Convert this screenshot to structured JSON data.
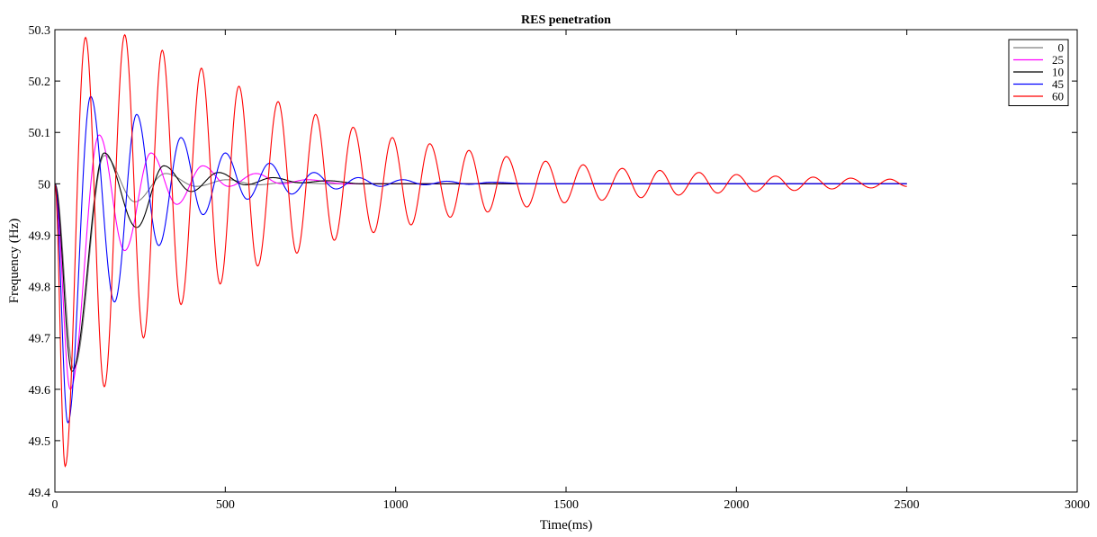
{
  "chart_data": {
    "type": "line",
    "title": "RES penetration",
    "xlabel": "Time(ms)",
    "ylabel": "Frequency (Hz)",
    "xlim": [
      0,
      3000
    ],
    "ylim": [
      49.4,
      50.3
    ],
    "xticks": [
      0,
      500,
      1000,
      1500,
      2000,
      2500,
      3000
    ],
    "yticks": [
      49.4,
      49.5,
      49.6,
      49.7,
      49.8,
      49.9,
      50,
      50.1,
      50.2,
      50.3
    ],
    "xtick_labels": [
      "0",
      "500",
      "1000",
      "1500",
      "2000",
      "2500",
      "3000"
    ],
    "ytick_labels": [
      "49.4",
      "49.5",
      "49.6",
      "49.7",
      "49.8",
      "49.9",
      "50",
      "50.1",
      "50.2",
      "50.3"
    ],
    "grid": false,
    "legend_position": "top-right",
    "series": [
      {
        "name": "0",
        "color": "#808080",
        "points": [
          [
            0,
            50.0
          ],
          [
            55,
            49.64
          ],
          [
            145,
            50.055
          ],
          [
            235,
            49.965
          ],
          [
            325,
            50.02
          ],
          [
            415,
            49.995
          ],
          [
            505,
            50.008
          ],
          [
            595,
            49.998
          ],
          [
            685,
            50.003
          ],
          [
            800,
            50.0
          ],
          [
            2500,
            50.0
          ]
        ]
      },
      {
        "name": "25",
        "color": "#ff00ff",
        "points": [
          [
            0,
            50.0
          ],
          [
            45,
            49.6
          ],
          [
            130,
            50.095
          ],
          [
            205,
            49.87
          ],
          [
            282,
            50.06
          ],
          [
            358,
            49.96
          ],
          [
            434,
            50.035
          ],
          [
            510,
            49.995
          ],
          [
            590,
            50.02
          ],
          [
            665,
            50.0
          ],
          [
            740,
            50.008
          ],
          [
            850,
            50.0
          ],
          [
            2500,
            50.0
          ]
        ]
      },
      {
        "name": "10",
        "color": "#000000",
        "points": [
          [
            0,
            50.0
          ],
          [
            50,
            49.635
          ],
          [
            145,
            50.06
          ],
          [
            240,
            49.915
          ],
          [
            320,
            50.035
          ],
          [
            400,
            49.985
          ],
          [
            480,
            50.022
          ],
          [
            560,
            49.998
          ],
          [
            640,
            50.012
          ],
          [
            720,
            50.002
          ],
          [
            800,
            50.006
          ],
          [
            900,
            50.0
          ],
          [
            2500,
            50.0
          ]
        ]
      },
      {
        "name": "45",
        "color": "#0000ff",
        "points": [
          [
            0,
            50.0
          ],
          [
            38,
            49.535
          ],
          [
            105,
            50.17
          ],
          [
            175,
            49.77
          ],
          [
            240,
            50.135
          ],
          [
            305,
            49.88
          ],
          [
            370,
            50.09
          ],
          [
            435,
            49.94
          ],
          [
            500,
            50.06
          ],
          [
            565,
            49.97
          ],
          [
            630,
            50.04
          ],
          [
            695,
            49.98
          ],
          [
            760,
            50.022
          ],
          [
            825,
            49.99
          ],
          [
            890,
            50.012
          ],
          [
            955,
            49.995
          ],
          [
            1020,
            50.008
          ],
          [
            1085,
            49.998
          ],
          [
            1150,
            50.005
          ],
          [
            1215,
            49.999
          ],
          [
            1280,
            50.003
          ],
          [
            1400,
            50.0
          ],
          [
            2500,
            50.0
          ]
        ]
      },
      {
        "name": "60",
        "color": "#ff0000",
        "points": [
          [
            0,
            50.0
          ],
          [
            30,
            49.45
          ],
          [
            90,
            50.285
          ],
          [
            145,
            49.605
          ],
          [
            205,
            50.29
          ],
          [
            260,
            49.7
          ],
          [
            315,
            50.26
          ],
          [
            370,
            49.765
          ],
          [
            430,
            50.225
          ],
          [
            485,
            49.805
          ],
          [
            540,
            50.19
          ],
          [
            595,
            49.84
          ],
          [
            655,
            50.16
          ],
          [
            710,
            49.865
          ],
          [
            765,
            50.135
          ],
          [
            820,
            49.89
          ],
          [
            875,
            50.11
          ],
          [
            935,
            49.905
          ],
          [
            990,
            50.09
          ],
          [
            1045,
            49.92
          ],
          [
            1100,
            50.078
          ],
          [
            1160,
            49.935
          ],
          [
            1215,
            50.065
          ],
          [
            1270,
            49.945
          ],
          [
            1325,
            50.053
          ],
          [
            1385,
            49.955
          ],
          [
            1440,
            50.044
          ],
          [
            1495,
            49.963
          ],
          [
            1550,
            50.037
          ],
          [
            1605,
            49.968
          ],
          [
            1665,
            50.03
          ],
          [
            1720,
            49.973
          ],
          [
            1775,
            50.026
          ],
          [
            1830,
            49.978
          ],
          [
            1890,
            50.022
          ],
          [
            1945,
            49.982
          ],
          [
            2000,
            50.018
          ],
          [
            2055,
            49.985
          ],
          [
            2115,
            50.015
          ],
          [
            2170,
            49.987
          ],
          [
            2225,
            50.013
          ],
          [
            2280,
            49.99
          ],
          [
            2335,
            50.011
          ],
          [
            2395,
            49.992
          ],
          [
            2450,
            50.009
          ],
          [
            2500,
            49.995
          ]
        ]
      }
    ]
  }
}
